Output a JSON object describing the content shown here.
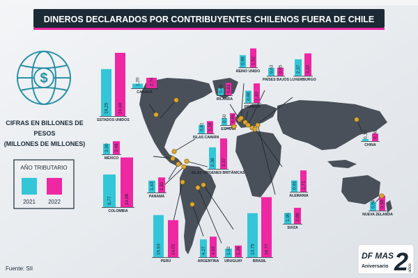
{
  "header": {
    "title": "DINEROS DECLARADOS POR CONTRIBUYENTES CHILENOS FUERA DE CHILE"
  },
  "left_panel": {
    "units": [
      "CIFRAS EN BILLONES DE",
      "PESOS",
      "(MILLONES DE MILLONES)"
    ],
    "legend_title": "AÑO TRIBUTARIO"
  },
  "footer": {
    "source": "Fuente: SII"
  },
  "badge": {
    "brand": "DF MAS",
    "text": "Aniversario",
    "number": "2",
    "suffix": "años"
  },
  "colors": {
    "y2021": "#33c6d8",
    "y2022": "#ee27a3",
    "map": "#4a5059",
    "header": "#1c2a36",
    "marker": "#e0a82e"
  },
  "chart_data": {
    "type": "bar",
    "series": [
      {
        "name": "2021"
      },
      {
        "name": "2022"
      }
    ],
    "countries": [
      {
        "id": "estados-unidos",
        "name": "ESTADOS UNIDOS",
        "v2021": 18.25,
        "v2022": 24.6,
        "l2021": "18,25",
        "l2022": "24,60"
      },
      {
        "id": "canada",
        "name": "CANADÁ",
        "v2021": 1.2,
        "v2022": 2.74,
        "l2021": "1,20",
        "l2022": "2,74"
      },
      {
        "id": "mexico",
        "name": "MÉXICO",
        "v2021": 2.0,
        "v2022": 2.48,
        "l2021": "2,00",
        "l2022": "2,48"
      },
      {
        "id": "colombia",
        "name": "COLOMBIA",
        "v2021": 9.77,
        "v2022": 14.88,
        "l2021": "9,77",
        "l2022": "14,88"
      },
      {
        "id": "panama",
        "name": "PANAMÁ",
        "v2021": 1.43,
        "v2022": 1.81,
        "l2021": "1,43",
        "l2022": "1,81"
      },
      {
        "id": "peru",
        "name": "PERÚ",
        "v2021": 15.93,
        "v2022": 14.01,
        "l2021": "15,93",
        "l2022": "14,01"
      },
      {
        "id": "argentina",
        "name": "ARGENTINA",
        "v2021": 4.27,
        "v2022": 4.92,
        "l2021": "4,27",
        "l2022": "4,92"
      },
      {
        "id": "uruguay",
        "name": "URUGUAY",
        "v2021": 1.02,
        "v2022": 1.39,
        "l2021": "1,02",
        "l2022": "1,39"
      },
      {
        "id": "brasil",
        "name": "BRASIL",
        "v2021": 13.75,
        "v2022": 18.77,
        "l2021": "13,75",
        "l2022": "18,77"
      },
      {
        "id": "islas-vg",
        "name": "ISLAS VÍRGENES BRITÁNICAS",
        "v2021": 2.38,
        "v2022": 3.37,
        "l2021": "2,38",
        "l2022": "3,37"
      },
      {
        "id": "islas-caiman",
        "name": "ISLAS CAIMÁN",
        "v2021": 0.81,
        "v2022": 1.18,
        "l2021": "0,81",
        "l2022": "1,18"
      },
      {
        "id": "espana",
        "name": "ESPAÑA",
        "v2021": 0.5,
        "v2022": 0.86,
        "l2021": "0,50",
        "l2022": "0,86"
      },
      {
        "id": "irlanda",
        "name": "IRLANDA",
        "v2021": 0.46,
        "v2022": 0.81,
        "l2021": "0,46",
        "l2022": "0,81"
      },
      {
        "id": "francia",
        "name": "FRANCIA",
        "v2021": 0.88,
        "v2022": 1.4,
        "l2021": "0,88",
        "l2022": "1,40"
      },
      {
        "id": "reino-unido",
        "name": "REINO UNIDO",
        "v2021": 0.98,
        "v2022": 1.52,
        "l2021": "0,98",
        "l2022": "1,52"
      },
      {
        "id": "paises-bajos",
        "name": "PAÍSES BAJOS",
        "v2021": 0.63,
        "v2022": 0.65,
        "l2021": "0,63",
        "l2022": "0,65"
      },
      {
        "id": "luxemburgo",
        "name": "LUXEMBURGO",
        "v2021": 2.37,
        "v2022": 3.22,
        "l2021": "2,37",
        "l2022": "3,22"
      },
      {
        "id": "alemania",
        "name": "ALEMANIA",
        "v2021": 0.91,
        "v2022": 1.71,
        "l2021": "0,91",
        "l2022": "1,71"
      },
      {
        "id": "suiza",
        "name": "SUIZA",
        "v2021": 1.95,
        "v2022": 2.88,
        "l2021": "1,95",
        "l2022": "2,88"
      },
      {
        "id": "china",
        "name": "CHINA",
        "v2021": 0.1,
        "v2022": 0.36,
        "l2021": "0,10",
        "l2022": "0,36"
      },
      {
        "id": "nueva-zelanda",
        "name": "NUEVA ZELANDA",
        "v2021": 0.58,
        "v2022": 0.98,
        "l2021": "0,58",
        "l2022": "0,98"
      }
    ]
  }
}
